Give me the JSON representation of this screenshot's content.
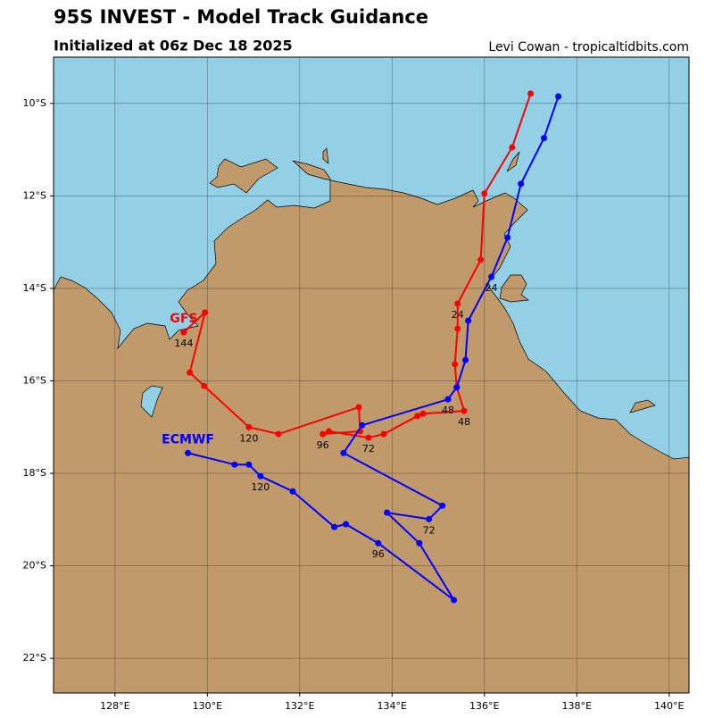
{
  "chart_data": {
    "type": "track",
    "title": "95S INVEST - Model Track Guidance",
    "subtitle": "Initialized at 06z Dec 18 2025",
    "credit": "Levi Cowan - tropicaltidbits.com",
    "xlim": [
      126.67,
      140.43
    ],
    "ylim": [
      -22.75,
      -9.0
    ],
    "xticks": [
      {
        "value": 128,
        "label": "128°E"
      },
      {
        "value": 130,
        "label": "130°E"
      },
      {
        "value": 132,
        "label": "132°E"
      },
      {
        "value": 134,
        "label": "134°E"
      },
      {
        "value": 136,
        "label": "136°E"
      },
      {
        "value": 138,
        "label": "138°E"
      },
      {
        "value": 140,
        "label": "140°E"
      }
    ],
    "yticks": [
      {
        "value": -10,
        "label": "10°S"
      },
      {
        "value": -12,
        "label": "12°S"
      },
      {
        "value": -14,
        "label": "14°S"
      },
      {
        "value": -16,
        "label": "16°S"
      },
      {
        "value": -18,
        "label": "18°S"
      },
      {
        "value": -20,
        "label": "20°S"
      },
      {
        "value": -22,
        "label": "22°S"
      }
    ],
    "grid": true,
    "series": [
      {
        "name": "GFS",
        "color": "#ff0000",
        "x": [
          137.0,
          136.6,
          136.0,
          135.92,
          135.42,
          135.42,
          135.36,
          135.4,
          135.56,
          134.67,
          134.55,
          133.82,
          133.49,
          132.63,
          132.5,
          133.31,
          133.28,
          131.54,
          130.9,
          129.93,
          129.62,
          129.95,
          129.49
        ],
        "values": [
          -9.79,
          -10.95,
          -11.95,
          -13.38,
          -14.33,
          -14.87,
          -15.64,
          -16.14,
          -16.65,
          -16.71,
          -16.76,
          -17.15,
          -17.23,
          -17.09,
          -17.15,
          -17.09,
          -16.57,
          -17.15,
          -17.0,
          -16.11,
          -15.82,
          -14.52,
          -14.95
        ],
        "point_labels": [
          null,
          null,
          null,
          null,
          "24",
          null,
          null,
          null,
          "48",
          null,
          null,
          null,
          "72",
          null,
          "96",
          null,
          null,
          null,
          "120",
          null,
          null,
          null,
          "144"
        ]
      },
      {
        "name": "ECMWF",
        "color": "#0000ff",
        "x": [
          137.6,
          137.29,
          136.79,
          136.5,
          136.15,
          135.65,
          135.59,
          135.4,
          135.21,
          133.35,
          132.95,
          135.09,
          134.8,
          133.89,
          134.59,
          135.34,
          133.7,
          133.0,
          132.75,
          131.85,
          131.15,
          130.9,
          130.59,
          129.58
        ],
        "values": [
          -9.85,
          -10.75,
          -11.74,
          -12.9,
          -13.75,
          -14.7,
          -15.55,
          -16.14,
          -16.4,
          -16.96,
          -17.56,
          -18.7,
          -18.99,
          -18.85,
          -19.51,
          -20.74,
          -19.51,
          -19.1,
          -19.16,
          -18.39,
          -18.06,
          -17.81,
          -17.81,
          -17.56
        ],
        "point_labels": [
          null,
          null,
          null,
          null,
          "24",
          null,
          null,
          null,
          "48",
          null,
          null,
          null,
          "72",
          null,
          null,
          null,
          "96",
          null,
          null,
          null,
          "120",
          null,
          null,
          null
        ]
      }
    ]
  }
}
